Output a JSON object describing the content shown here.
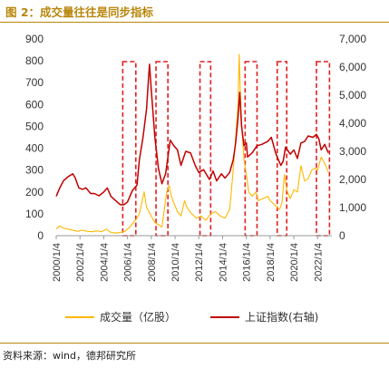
{
  "header": {
    "title": "图 2：成交量往往是同步指标"
  },
  "footer": {
    "source": "资料来源：wind，德邦研究所"
  },
  "colors": {
    "volume": "#ffb800",
    "index": "#c00000",
    "highlight": "#e02020",
    "accent": "#b8860b"
  },
  "chart_data": {
    "type": "line",
    "title": "",
    "x_tick_labels": [
      "2000/1/4",
      "2002/1/4",
      "2004/1/4",
      "2006/1/4",
      "2008/1/4",
      "2010/1/4",
      "2012/1/4",
      "2014/1/4",
      "2016/1/4",
      "2018/1/4",
      "2020/1/4",
      "2022/1/4"
    ],
    "x_range": [
      2000.0,
      2023.2
    ],
    "y_left": {
      "label": "",
      "ticks": [
        0,
        100,
        200,
        300,
        400,
        500,
        600,
        700,
        800,
        900
      ],
      "range": [
        0,
        900
      ]
    },
    "y_right": {
      "label": "",
      "ticks": [
        "0",
        "1,000",
        "2,000",
        "3,000",
        "4,000",
        "5,000",
        "6,000",
        "7,000"
      ],
      "tick_values": [
        0,
        1000,
        2000,
        3000,
        4000,
        5000,
        6000,
        7000
      ],
      "range": [
        0,
        7000
      ]
    },
    "series": [
      {
        "name": "成交量（亿股）",
        "axis": "left",
        "points": [
          [
            2000.0,
            30
          ],
          [
            2000.3,
            45
          ],
          [
            2000.6,
            35
          ],
          [
            2001.0,
            30
          ],
          [
            2001.4,
            25
          ],
          [
            2001.8,
            20
          ],
          [
            2002.2,
            25
          ],
          [
            2002.6,
            20
          ],
          [
            2003.0,
            18
          ],
          [
            2003.4,
            22
          ],
          [
            2003.8,
            18
          ],
          [
            2004.2,
            30
          ],
          [
            2004.6,
            15
          ],
          [
            2005.0,
            12
          ],
          [
            2005.4,
            15
          ],
          [
            2005.8,
            20
          ],
          [
            2006.2,
            40
          ],
          [
            2006.5,
            60
          ],
          [
            2006.8,
            80
          ],
          [
            2007.0,
            100
          ],
          [
            2007.2,
            150
          ],
          [
            2007.4,
            200
          ],
          [
            2007.6,
            130
          ],
          [
            2007.8,
            110
          ],
          [
            2008.0,
            90
          ],
          [
            2008.3,
            60
          ],
          [
            2008.6,
            50
          ],
          [
            2008.9,
            40
          ],
          [
            2009.1,
            120
          ],
          [
            2009.3,
            200
          ],
          [
            2009.5,
            230
          ],
          [
            2009.7,
            180
          ],
          [
            2009.9,
            150
          ],
          [
            2010.2,
            110
          ],
          [
            2010.5,
            90
          ],
          [
            2010.8,
            160
          ],
          [
            2011.0,
            130
          ],
          [
            2011.4,
            100
          ],
          [
            2011.8,
            80
          ],
          [
            2012.2,
            90
          ],
          [
            2012.6,
            70
          ],
          [
            2013.0,
            100
          ],
          [
            2013.4,
            110
          ],
          [
            2013.8,
            90
          ],
          [
            2014.2,
            80
          ],
          [
            2014.6,
            120
          ],
          [
            2014.9,
            300
          ],
          [
            2015.1,
            450
          ],
          [
            2015.3,
            600
          ],
          [
            2015.4,
            830
          ],
          [
            2015.5,
            650
          ],
          [
            2015.6,
            520
          ],
          [
            2015.8,
            350
          ],
          [
            2016.0,
            280
          ],
          [
            2016.2,
            200
          ],
          [
            2016.5,
            180
          ],
          [
            2016.8,
            200
          ],
          [
            2017.0,
            160
          ],
          [
            2017.4,
            170
          ],
          [
            2017.8,
            180
          ],
          [
            2018.0,
            160
          ],
          [
            2018.4,
            140
          ],
          [
            2018.8,
            120
          ],
          [
            2019.0,
            150
          ],
          [
            2019.2,
            280
          ],
          [
            2019.4,
            210
          ],
          [
            2019.7,
            170
          ],
          [
            2020.0,
            210
          ],
          [
            2020.3,
            200
          ],
          [
            2020.6,
            320
          ],
          [
            2020.9,
            250
          ],
          [
            2021.2,
            260
          ],
          [
            2021.5,
            300
          ],
          [
            2021.8,
            310
          ],
          [
            2022.0,
            300
          ],
          [
            2022.3,
            360
          ],
          [
            2022.6,
            330
          ],
          [
            2022.9,
            290
          ]
        ]
      },
      {
        "name": "上证指数(右轴)",
        "axis": "right",
        "points": [
          [
            2000.0,
            1400
          ],
          [
            2000.3,
            1700
          ],
          [
            2000.6,
            1950
          ],
          [
            2001.0,
            2100
          ],
          [
            2001.4,
            2200
          ],
          [
            2001.6,
            2050
          ],
          [
            2001.9,
            1700
          ],
          [
            2002.2,
            1650
          ],
          [
            2002.5,
            1700
          ],
          [
            2002.9,
            1500
          ],
          [
            2003.2,
            1500
          ],
          [
            2003.6,
            1420
          ],
          [
            2004.0,
            1550
          ],
          [
            2004.3,
            1700
          ],
          [
            2004.6,
            1400
          ],
          [
            2005.0,
            1250
          ],
          [
            2005.4,
            1100
          ],
          [
            2005.7,
            1100
          ],
          [
            2006.0,
            1200
          ],
          [
            2006.4,
            1600
          ],
          [
            2006.8,
            1800
          ],
          [
            2007.0,
            2700
          ],
          [
            2007.3,
            3500
          ],
          [
            2007.6,
            4500
          ],
          [
            2007.8,
            5800
          ],
          [
            2007.85,
            6100
          ],
          [
            2008.0,
            5200
          ],
          [
            2008.3,
            3500
          ],
          [
            2008.6,
            2400
          ],
          [
            2008.9,
            1850
          ],
          [
            2009.2,
            2200
          ],
          [
            2009.6,
            3400
          ],
          [
            2009.9,
            3200
          ],
          [
            2010.2,
            3050
          ],
          [
            2010.5,
            2500
          ],
          [
            2010.9,
            3000
          ],
          [
            2011.3,
            2950
          ],
          [
            2011.7,
            2500
          ],
          [
            2012.0,
            2250
          ],
          [
            2012.4,
            2350
          ],
          [
            2012.9,
            2000
          ],
          [
            2013.2,
            2300
          ],
          [
            2013.5,
            1950
          ],
          [
            2013.9,
            2200
          ],
          [
            2014.2,
            2050
          ],
          [
            2014.6,
            2250
          ],
          [
            2014.9,
            2700
          ],
          [
            2015.1,
            3300
          ],
          [
            2015.3,
            4200
          ],
          [
            2015.45,
            5100
          ],
          [
            2015.6,
            3900
          ],
          [
            2015.8,
            3200
          ],
          [
            2016.0,
            3300
          ],
          [
            2016.1,
            2800
          ],
          [
            2016.5,
            2950
          ],
          [
            2016.9,
            3200
          ],
          [
            2017.3,
            3250
          ],
          [
            2017.8,
            3350
          ],
          [
            2018.1,
            3500
          ],
          [
            2018.5,
            2900
          ],
          [
            2018.9,
            2500
          ],
          [
            2019.1,
            2650
          ],
          [
            2019.3,
            3150
          ],
          [
            2019.7,
            2900
          ],
          [
            2020.0,
            3050
          ],
          [
            2020.3,
            2750
          ],
          [
            2020.6,
            3300
          ],
          [
            2020.9,
            3350
          ],
          [
            2021.2,
            3550
          ],
          [
            2021.6,
            3500
          ],
          [
            2021.9,
            3600
          ],
          [
            2022.1,
            3450
          ],
          [
            2022.3,
            3050
          ],
          [
            2022.6,
            3250
          ],
          [
            2022.9,
            2950
          ]
        ]
      }
    ],
    "highlight_periods": [
      [
        2005.6,
        2006.7
      ],
      [
        2008.4,
        2009.4
      ],
      [
        2012.1,
        2013.0
      ],
      [
        2015.9,
        2016.9
      ],
      [
        2018.6,
        2019.4
      ],
      [
        2021.9,
        2023.0
      ]
    ],
    "legend": {
      "position": "bottom",
      "entries": [
        "成交量（亿股）",
        "上证指数(右轴)"
      ]
    },
    "grid": false
  }
}
